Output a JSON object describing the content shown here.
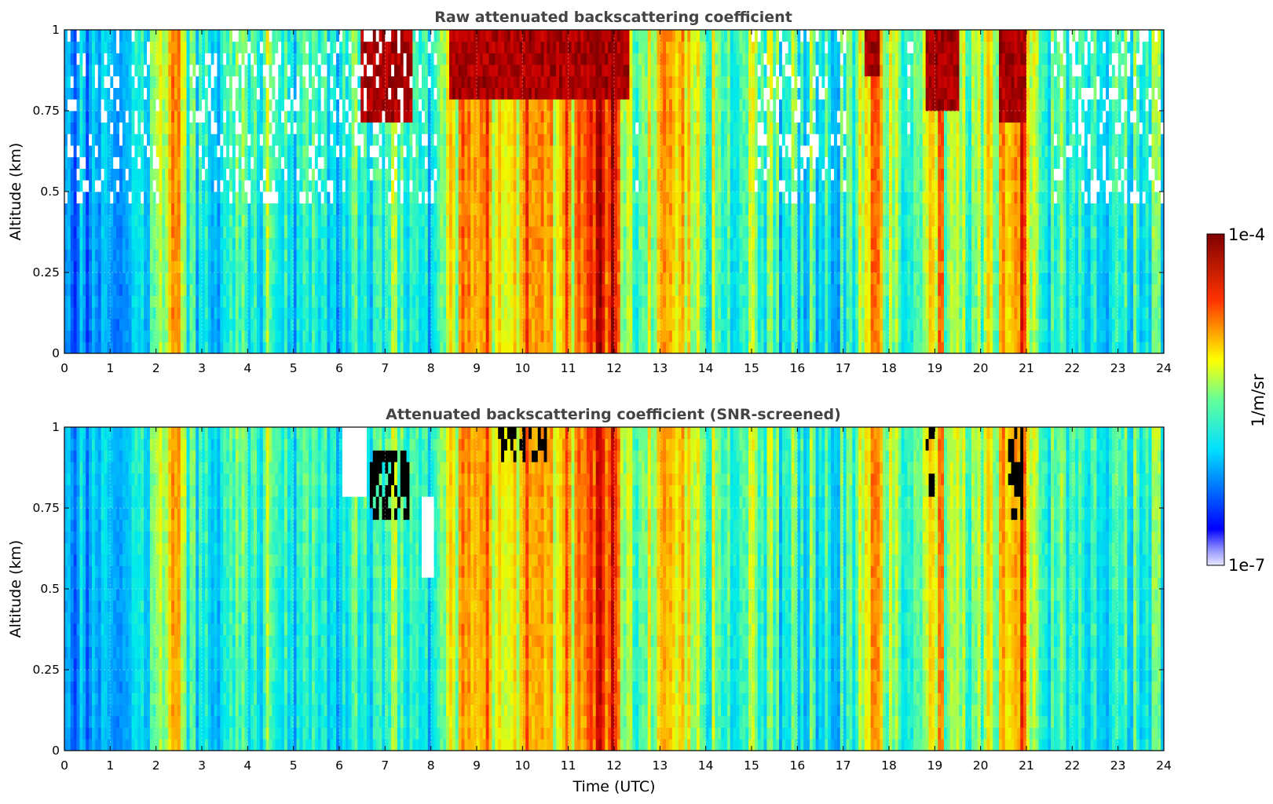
{
  "chart_data": [
    {
      "type": "heatmap",
      "title": "Raw attenuated backscattering coefficient",
      "xlabel": "",
      "ylabel": "Altitude (km)",
      "xlim": [
        0,
        24
      ],
      "ylim": [
        0,
        1
      ],
      "x_ticks": [
        "0",
        "1",
        "2",
        "3",
        "4",
        "5",
        "6",
        "7",
        "8",
        "9",
        "10",
        "11",
        "12",
        "13",
        "14",
        "15",
        "16",
        "17",
        "18",
        "19",
        "20",
        "21",
        "22",
        "23",
        "24"
      ],
      "y_ticks": [
        "0",
        "0.25",
        "0.5",
        "0.75",
        "1"
      ],
      "grid": true,
      "colormap": "jet",
      "screened": false,
      "value_range": [
        "1e-7",
        "1e-4"
      ],
      "log_scale": true,
      "intensity_profile_x": [
        0,
        0.5,
        1,
        1.5,
        2,
        2.2,
        2.4,
        2.6,
        3,
        4,
        5,
        6,
        6.5,
        7,
        7.5,
        8,
        8.3,
        8.7,
        9,
        9.5,
        10,
        10.3,
        10.6,
        11,
        11.5,
        12,
        12.2,
        12.5,
        13,
        13.5,
        14,
        15,
        16,
        17,
        17.5,
        17.7,
        17.9,
        18.5,
        18.9,
        19.3,
        19.8,
        20.2,
        20.6,
        20.9,
        21.1,
        21.5,
        22,
        23,
        24
      ],
      "intensity_profile": [
        0.3,
        0.3,
        0.36,
        0.4,
        0.48,
        0.58,
        0.85,
        0.52,
        0.45,
        0.5,
        0.46,
        0.42,
        0.46,
        0.48,
        0.5,
        0.44,
        0.55,
        0.72,
        0.75,
        0.68,
        0.72,
        0.82,
        0.66,
        0.7,
        0.85,
        0.92,
        0.58,
        0.48,
        0.72,
        0.68,
        0.55,
        0.5,
        0.44,
        0.48,
        0.62,
        0.86,
        0.6,
        0.48,
        0.74,
        0.66,
        0.52,
        0.62,
        0.7,
        0.8,
        0.62,
        0.5,
        0.45,
        0.46,
        0.48
      ],
      "cloud_layers": [
        {
          "t_start": 6.5,
          "t_end": 7.6,
          "alt_bottom": 0.7,
          "alt_top": 1.0
        },
        {
          "t_start": 8.4,
          "t_end": 12.3,
          "alt_bottom": 0.8,
          "alt_top": 1.0
        },
        {
          "t_start": 17.5,
          "t_end": 17.8,
          "alt_bottom": 0.85,
          "alt_top": 1.0
        },
        {
          "t_start": 18.8,
          "t_end": 19.5,
          "alt_bottom": 0.75,
          "alt_top": 1.0
        },
        {
          "t_start": 20.4,
          "t_end": 21.0,
          "alt_bottom": 0.7,
          "alt_top": 1.0
        }
      ]
    },
    {
      "type": "heatmap",
      "title": "Attenuated backscattering coefficient (SNR-screened)",
      "xlabel": "Time (UTC)",
      "ylabel": "Altitude (km)",
      "xlim": [
        0,
        24
      ],
      "ylim": [
        0,
        1
      ],
      "x_ticks": [
        "0",
        "1",
        "2",
        "3",
        "4",
        "5",
        "6",
        "7",
        "8",
        "9",
        "10",
        "11",
        "12",
        "13",
        "14",
        "15",
        "16",
        "17",
        "18",
        "19",
        "20",
        "21",
        "22",
        "23",
        "24"
      ],
      "y_ticks": [
        "0",
        "0.25",
        "0.5",
        "0.75",
        "1"
      ],
      "grid": true,
      "colormap": "jet",
      "screened": true,
      "value_range": [
        "1e-7",
        "1e-4"
      ],
      "log_scale": true,
      "intensity_profile_x": [
        0,
        0.5,
        1,
        1.5,
        2,
        2.2,
        2.4,
        2.6,
        3,
        4,
        5,
        6,
        6.5,
        7,
        7.5,
        8,
        8.3,
        8.7,
        9,
        9.5,
        10,
        10.3,
        10.6,
        11,
        11.5,
        12,
        12.2,
        12.5,
        13,
        13.5,
        14,
        15,
        16,
        17,
        17.5,
        17.7,
        17.9,
        18.5,
        18.9,
        19.3,
        19.8,
        20.2,
        20.6,
        20.9,
        21.1,
        21.5,
        22,
        23,
        24
      ],
      "intensity_profile": [
        0.3,
        0.3,
        0.36,
        0.4,
        0.48,
        0.58,
        0.85,
        0.52,
        0.45,
        0.5,
        0.46,
        0.42,
        0.46,
        0.48,
        0.5,
        0.44,
        0.55,
        0.72,
        0.75,
        0.68,
        0.72,
        0.82,
        0.66,
        0.7,
        0.85,
        0.92,
        0.58,
        0.48,
        0.72,
        0.68,
        0.55,
        0.5,
        0.44,
        0.48,
        0.62,
        0.86,
        0.6,
        0.48,
        0.74,
        0.66,
        0.52,
        0.62,
        0.7,
        0.8,
        0.62,
        0.5,
        0.45,
        0.46,
        0.48
      ],
      "masked_regions": [
        {
          "t_start": 6.1,
          "t_end": 6.6,
          "alt_bottom": 0.8,
          "alt_top": 1.0
        },
        {
          "t_start": 7.8,
          "t_end": 8.1,
          "alt_bottom": 0.55,
          "alt_top": 0.8
        }
      ],
      "saturated_regions": [
        {
          "t_start": 6.7,
          "t_end": 7.5,
          "alt_bottom": 0.72,
          "alt_top": 0.92
        },
        {
          "t_start": 9.5,
          "t_end": 10.5,
          "alt_bottom": 0.88,
          "alt_top": 1.0
        },
        {
          "t_start": 18.8,
          "t_end": 19.0,
          "alt_bottom": 0.78,
          "alt_top": 1.0
        },
        {
          "t_start": 20.6,
          "t_end": 20.9,
          "alt_bottom": 0.72,
          "alt_top": 1.0
        }
      ]
    }
  ],
  "colorbar": {
    "label": "1/m/sr",
    "max_label": "1e-4",
    "min_label": "1e-7"
  }
}
